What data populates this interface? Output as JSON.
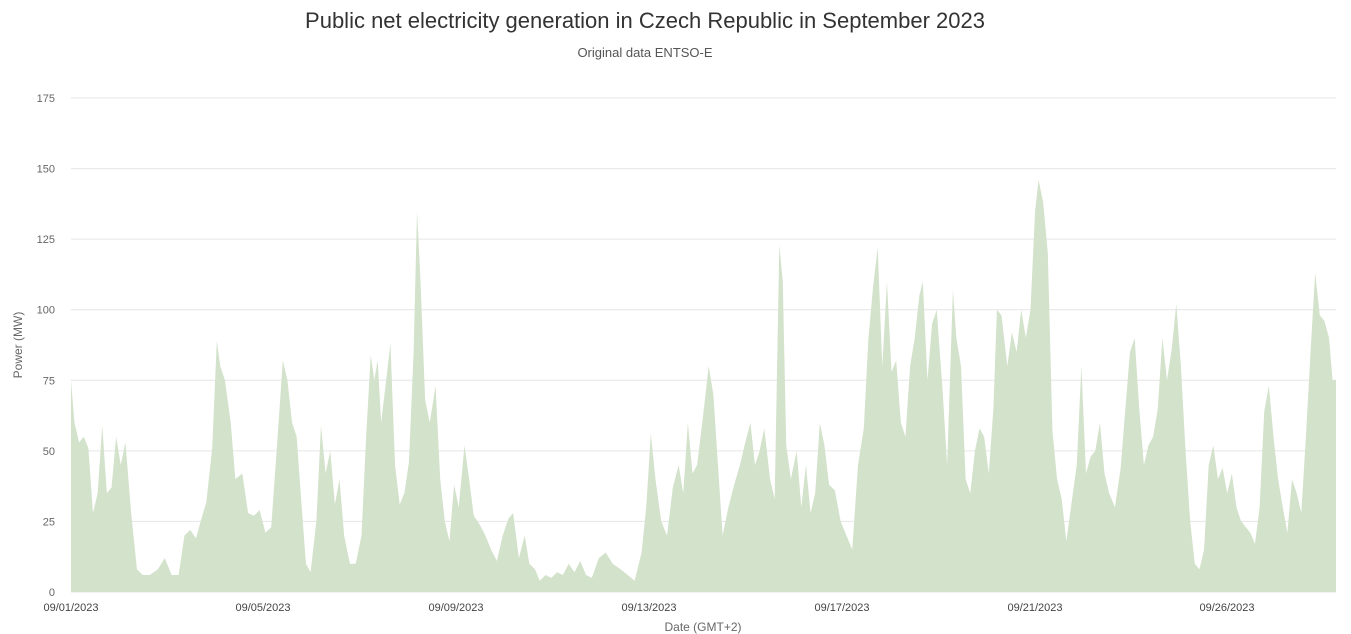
{
  "chart_data": {
    "type": "area",
    "title": "Public net electricity generation in Czech Republic in September 2023",
    "subtitle": "Original data ENTSO-E",
    "xlabel": "Date (GMT+2)",
    "ylabel": "Power (MW)",
    "ylim": [
      0,
      175
    ],
    "yticks": [
      0,
      25,
      50,
      75,
      100,
      125,
      150,
      175
    ],
    "xlim": [
      "2023-09-01",
      "2023-09-30"
    ],
    "xticks": [
      "09/01/2023",
      "09/05/2023",
      "09/09/2023",
      "09/13/2023",
      "09/17/2023",
      "09/21/2023",
      "09/26/2023"
    ],
    "grid": true,
    "fill_color": "#d3e2cb",
    "series": [
      {
        "values": [
          [
            0.0,
            75
          ],
          [
            0.06,
            60
          ],
          [
            0.14,
            53
          ],
          [
            0.22,
            55
          ],
          [
            0.3,
            51
          ],
          [
            0.38,
            28
          ],
          [
            0.46,
            35
          ],
          [
            0.54,
            59
          ],
          [
            0.62,
            35
          ],
          [
            0.7,
            37
          ],
          [
            0.78,
            55
          ],
          [
            0.86,
            45
          ],
          [
            0.94,
            53
          ],
          [
            1.04,
            28
          ],
          [
            1.14,
            8
          ],
          [
            1.24,
            6
          ],
          [
            1.36,
            6
          ],
          [
            1.5,
            8
          ],
          [
            1.62,
            12
          ],
          [
            1.74,
            6
          ],
          [
            1.86,
            6
          ],
          [
            1.96,
            20
          ],
          [
            2.06,
            22
          ],
          [
            2.16,
            19
          ],
          [
            2.24,
            25
          ],
          [
            2.34,
            32
          ],
          [
            2.44,
            51
          ],
          [
            2.52,
            89
          ],
          [
            2.58,
            80
          ],
          [
            2.66,
            75
          ],
          [
            2.76,
            60
          ],
          [
            2.84,
            40
          ],
          [
            2.96,
            42
          ],
          [
            3.06,
            28
          ],
          [
            3.16,
            27
          ],
          [
            3.26,
            29
          ],
          [
            3.36,
            21
          ],
          [
            3.46,
            23
          ],
          [
            3.56,
            52
          ],
          [
            3.66,
            82
          ],
          [
            3.74,
            75
          ],
          [
            3.82,
            60
          ],
          [
            3.9,
            55
          ],
          [
            3.98,
            32
          ],
          [
            4.06,
            10
          ],
          [
            4.14,
            7
          ],
          [
            4.24,
            25
          ],
          [
            4.32,
            59
          ],
          [
            4.4,
            42
          ],
          [
            4.48,
            50
          ],
          [
            4.56,
            31
          ],
          [
            4.64,
            40
          ],
          [
            4.72,
            20
          ],
          [
            4.82,
            10
          ],
          [
            4.92,
            10
          ],
          [
            5.02,
            20
          ],
          [
            5.1,
            55
          ],
          [
            5.18,
            84
          ],
          [
            5.24,
            75
          ],
          [
            5.3,
            82
          ],
          [
            5.36,
            60
          ],
          [
            5.44,
            74
          ],
          [
            5.52,
            88
          ],
          [
            5.6,
            45
          ],
          [
            5.68,
            31
          ],
          [
            5.76,
            35
          ],
          [
            5.84,
            46
          ],
          [
            5.92,
            85
          ],
          [
            5.98,
            135
          ],
          [
            6.04,
            110
          ],
          [
            6.12,
            68
          ],
          [
            6.2,
            60
          ],
          [
            6.3,
            73
          ],
          [
            6.38,
            40
          ],
          [
            6.46,
            25
          ],
          [
            6.54,
            18
          ],
          [
            6.62,
            38
          ],
          [
            6.7,
            30
          ],
          [
            6.8,
            52
          ],
          [
            6.88,
            40
          ],
          [
            6.96,
            27
          ],
          [
            7.06,
            24
          ],
          [
            7.16,
            20
          ],
          [
            7.26,
            15
          ],
          [
            7.36,
            11
          ],
          [
            7.46,
            20
          ],
          [
            7.56,
            26
          ],
          [
            7.64,
            28
          ],
          [
            7.74,
            12
          ],
          [
            7.84,
            20
          ],
          [
            7.92,
            10
          ],
          [
            8.02,
            8
          ],
          [
            8.1,
            4
          ],
          [
            8.2,
            6
          ],
          [
            8.3,
            5
          ],
          [
            8.4,
            7
          ],
          [
            8.5,
            6
          ],
          [
            8.6,
            10
          ],
          [
            8.7,
            7
          ],
          [
            8.8,
            11
          ],
          [
            8.9,
            6
          ],
          [
            9.0,
            5
          ],
          [
            9.12,
            12
          ],
          [
            9.24,
            14
          ],
          [
            9.36,
            10
          ],
          [
            9.5,
            8
          ],
          [
            9.62,
            6
          ],
          [
            9.74,
            4
          ],
          [
            9.86,
            14
          ],
          [
            9.94,
            30
          ],
          [
            10.02,
            56
          ],
          [
            10.1,
            40
          ],
          [
            10.2,
            25
          ],
          [
            10.3,
            20
          ],
          [
            10.4,
            37
          ],
          [
            10.5,
            45
          ],
          [
            10.58,
            35
          ],
          [
            10.66,
            60
          ],
          [
            10.74,
            42
          ],
          [
            10.82,
            45
          ],
          [
            10.92,
            62
          ],
          [
            11.02,
            80
          ],
          [
            11.1,
            70
          ],
          [
            11.18,
            45
          ],
          [
            11.26,
            20
          ],
          [
            11.36,
            30
          ],
          [
            11.46,
            38
          ],
          [
            11.56,
            45
          ],
          [
            11.64,
            52
          ],
          [
            11.74,
            60
          ],
          [
            11.82,
            45
          ],
          [
            11.9,
            50
          ],
          [
            11.98,
            58
          ],
          [
            12.08,
            40
          ],
          [
            12.16,
            33
          ],
          [
            12.24,
            123
          ],
          [
            12.3,
            110
          ],
          [
            12.36,
            52
          ],
          [
            12.44,
            40
          ],
          [
            12.54,
            50
          ],
          [
            12.62,
            30
          ],
          [
            12.7,
            45
          ],
          [
            12.78,
            28
          ],
          [
            12.86,
            35
          ],
          [
            12.94,
            60
          ],
          [
            13.02,
            52
          ],
          [
            13.1,
            38
          ],
          [
            13.2,
            36
          ],
          [
            13.3,
            25
          ],
          [
            13.4,
            20
          ],
          [
            13.5,
            15
          ],
          [
            13.6,
            45
          ],
          [
            13.7,
            58
          ],
          [
            13.78,
            90
          ],
          [
            13.86,
            108
          ],
          [
            13.94,
            122
          ],
          [
            14.02,
            80
          ],
          [
            14.1,
            110
          ],
          [
            14.18,
            78
          ],
          [
            14.26,
            82
          ],
          [
            14.34,
            60
          ],
          [
            14.42,
            55
          ],
          [
            14.5,
            80
          ],
          [
            14.58,
            90
          ],
          [
            14.66,
            105
          ],
          [
            14.72,
            110
          ],
          [
            14.8,
            75
          ],
          [
            14.88,
            95
          ],
          [
            14.96,
            100
          ],
          [
            15.06,
            72
          ],
          [
            15.14,
            45
          ],
          [
            15.24,
            107
          ],
          [
            15.3,
            90
          ],
          [
            15.38,
            80
          ],
          [
            15.46,
            40
          ],
          [
            15.54,
            35
          ],
          [
            15.62,
            50
          ],
          [
            15.7,
            58
          ],
          [
            15.78,
            55
          ],
          [
            15.86,
            42
          ],
          [
            15.94,
            65
          ],
          [
            16.0,
            100
          ],
          [
            16.08,
            98
          ],
          [
            16.18,
            80
          ],
          [
            16.26,
            92
          ],
          [
            16.34,
            85
          ],
          [
            16.42,
            100
          ],
          [
            16.5,
            90
          ],
          [
            16.58,
            100
          ],
          [
            16.66,
            135
          ],
          [
            16.72,
            146
          ],
          [
            16.8,
            138
          ],
          [
            16.88,
            120
          ],
          [
            16.96,
            57
          ],
          [
            17.04,
            40
          ],
          [
            17.12,
            33
          ],
          [
            17.2,
            18
          ],
          [
            17.28,
            30
          ],
          [
            17.38,
            45
          ],
          [
            17.46,
            80
          ],
          [
            17.54,
            42
          ],
          [
            17.62,
            48
          ],
          [
            17.7,
            50
          ],
          [
            17.78,
            60
          ],
          [
            17.86,
            42
          ],
          [
            17.94,
            35
          ],
          [
            18.04,
            30
          ],
          [
            18.14,
            44
          ],
          [
            18.22,
            65
          ],
          [
            18.3,
            85
          ],
          [
            18.38,
            90
          ],
          [
            18.46,
            65
          ],
          [
            18.54,
            45
          ],
          [
            18.62,
            52
          ],
          [
            18.7,
            55
          ],
          [
            18.78,
            65
          ],
          [
            18.86,
            90
          ],
          [
            18.94,
            75
          ],
          [
            19.02,
            86
          ],
          [
            19.1,
            102
          ],
          [
            19.18,
            80
          ],
          [
            19.26,
            50
          ],
          [
            19.34,
            25
          ],
          [
            19.42,
            10
          ],
          [
            19.5,
            8
          ],
          [
            19.58,
            15
          ],
          [
            19.66,
            45
          ],
          [
            19.74,
            52
          ],
          [
            19.82,
            40
          ],
          [
            19.9,
            44
          ],
          [
            19.98,
            35
          ],
          [
            20.06,
            42
          ],
          [
            20.14,
            30
          ],
          [
            20.22,
            25
          ],
          [
            20.3,
            23
          ],
          [
            20.38,
            21
          ],
          [
            20.46,
            17
          ],
          [
            20.54,
            30
          ],
          [
            20.62,
            64
          ],
          [
            20.7,
            73
          ],
          [
            20.78,
            55
          ],
          [
            20.86,
            40
          ],
          [
            20.94,
            30
          ],
          [
            21.02,
            21
          ],
          [
            21.1,
            40
          ],
          [
            21.18,
            35
          ],
          [
            21.26,
            28
          ],
          [
            21.34,
            55
          ],
          [
            21.42,
            85
          ],
          [
            21.5,
            113
          ],
          [
            21.58,
            98
          ],
          [
            21.66,
            96
          ],
          [
            21.74,
            90
          ],
          [
            21.8,
            75
          ],
          [
            21.86,
            75
          ]
        ]
      }
    ]
  }
}
